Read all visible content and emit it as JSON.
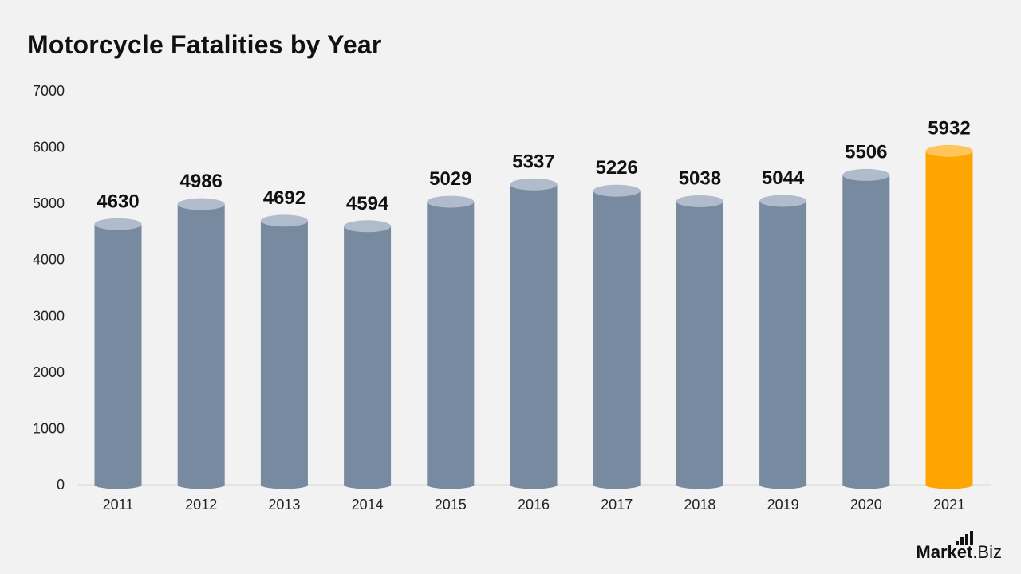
{
  "title": "Motorcycle Fatalities by Year",
  "colors": {
    "bar": "#778a9f",
    "bar_top": "#b0bccb",
    "highlight": "#ffa500",
    "highlight_top": "#ffc55a",
    "background": "#f2f2f2",
    "axis": "#d6d6d6"
  },
  "chart_data": {
    "type": "bar",
    "title": "Motorcycle Fatalities by Year",
    "categories": [
      "2011",
      "2012",
      "2013",
      "2014",
      "2015",
      "2016",
      "2017",
      "2018",
      "2019",
      "2020",
      "2021"
    ],
    "values": [
      4630,
      4986,
      4692,
      4594,
      5029,
      5337,
      5226,
      5038,
      5044,
      5506,
      5932
    ],
    "value_labels": [
      "4630",
      "4986",
      "4692",
      "4594",
      "5029",
      "5337",
      "5226",
      "5038",
      "5044",
      "5506",
      "5932"
    ],
    "highlight_category": "2021",
    "ylim": [
      0,
      7000
    ],
    "yticks": [
      "0",
      "1000",
      "2000",
      "3000",
      "4000",
      "5000",
      "6000",
      "7000"
    ],
    "xlabel": "",
    "ylabel": "",
    "grid": false,
    "legend": false
  },
  "logo": {
    "brand": "Market",
    "suffix": ".Biz"
  }
}
